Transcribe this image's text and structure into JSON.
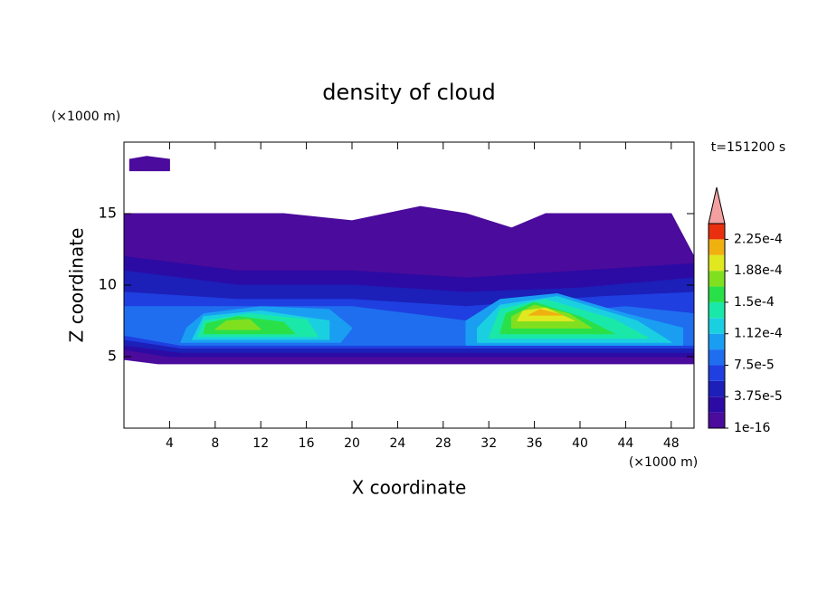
{
  "chart_data": {
    "type": "contour",
    "title": "density of cloud",
    "xlabel": "X coordinate",
    "ylabel": "Z coordinate",
    "xunit": "(×1000 m)",
    "yunit": "(×1000 m)",
    "annotation": "t=151200 s",
    "xlim": [
      0,
      50
    ],
    "ylim": [
      0,
      20
    ],
    "xticks": [
      4,
      8,
      12,
      16,
      20,
      24,
      28,
      32,
      36,
      40,
      44,
      48
    ],
    "yticks": [
      5,
      10,
      15
    ],
    "levels": [
      1e-16,
      1.875e-05,
      3.75e-05,
      5.625e-05,
      7.5e-05,
      9.375e-05,
      0.0001125,
      0.00013125,
      0.00015,
      0.00016875,
      0.0001875,
      0.00020625,
      0.000225,
      0.00024375
    ],
    "colors": [
      "#4b0b9c",
      "#2c0ba4",
      "#1c1fb8",
      "#1f3fe0",
      "#1f6ef0",
      "#1a9ef2",
      "#1ad0e0",
      "#1ae8a8",
      "#2ae048",
      "#80e020",
      "#e0e820",
      "#f0b010",
      "#e83010"
    ],
    "extend_color": "#f4a0a0",
    "colorbar_ticks": [
      {
        "value": 1e-16,
        "label": "1e-16"
      },
      {
        "value": 3.75e-05,
        "label": "3.75e-5"
      },
      {
        "value": 7.5e-05,
        "label": "7.5e-5"
      },
      {
        "value": 0.0001125,
        "label": "1.12e-4"
      },
      {
        "value": 0.00015,
        "label": "1.5e-4"
      },
      {
        "value": 0.0001875,
        "label": "1.88e-4"
      },
      {
        "value": 0.000225,
        "label": "2.25e-4"
      }
    ],
    "regions": [
      {
        "level": 1e-16,
        "points": [
          [
            0,
            4.8
          ],
          [
            3,
            4.5
          ],
          [
            50,
            4.5
          ],
          [
            50,
            12
          ],
          [
            48,
            15
          ],
          [
            37,
            15
          ],
          [
            34,
            14
          ],
          [
            30,
            15
          ],
          [
            26,
            15.5
          ],
          [
            20,
            14.5
          ],
          [
            14,
            15
          ],
          [
            6,
            15
          ],
          [
            0,
            15
          ]
        ]
      },
      {
        "level": 1e-16,
        "points": [
          [
            0.5,
            18
          ],
          [
            4,
            18
          ],
          [
            4,
            18.8
          ],
          [
            2,
            19
          ],
          [
            0.5,
            18.8
          ]
        ]
      },
      {
        "level": 1.875e-05,
        "points": [
          [
            0,
            5.5
          ],
          [
            4,
            5
          ],
          [
            50,
            5
          ],
          [
            50,
            11.5
          ],
          [
            40,
            11
          ],
          [
            30,
            10.5
          ],
          [
            20,
            11
          ],
          [
            10,
            11
          ],
          [
            0,
            12
          ]
        ]
      },
      {
        "level": 3.75e-05,
        "points": [
          [
            0,
            5.8
          ],
          [
            5,
            5.3
          ],
          [
            50,
            5.3
          ],
          [
            50,
            10.5
          ],
          [
            40,
            9.8
          ],
          [
            30,
            9.5
          ],
          [
            20,
            10
          ],
          [
            10,
            10
          ],
          [
            0,
            11
          ]
        ]
      },
      {
        "level": 5.625e-05,
        "points": [
          [
            0,
            6.2
          ],
          [
            5,
            5.6
          ],
          [
            50,
            5.6
          ],
          [
            50,
            9.5
          ],
          [
            42,
            9.2
          ],
          [
            30,
            8.5
          ],
          [
            20,
            9
          ],
          [
            10,
            9
          ],
          [
            0,
            9.5
          ]
        ]
      },
      {
        "level": 7.5e-05,
        "points": [
          [
            0,
            6.5
          ],
          [
            5,
            5.8
          ],
          [
            50,
            5.8
          ],
          [
            50,
            8
          ],
          [
            44,
            8.5
          ],
          [
            30,
            7.5
          ],
          [
            20,
            8.5
          ],
          [
            10,
            8.5
          ],
          [
            0,
            8.5
          ]
        ]
      },
      {
        "level": 9.375e-05,
        "points": [
          [
            5,
            6
          ],
          [
            19,
            6
          ],
          [
            20,
            7
          ],
          [
            18,
            8.3
          ],
          [
            12,
            8.5
          ],
          [
            7,
            8
          ],
          [
            5.5,
            7
          ]
        ]
      },
      {
        "level": 9.375e-05,
        "points": [
          [
            30,
            5.8
          ],
          [
            49,
            5.8
          ],
          [
            49,
            7
          ],
          [
            44,
            8
          ],
          [
            38,
            9.4
          ],
          [
            33,
            9
          ],
          [
            30,
            7.5
          ]
        ]
      },
      {
        "level": 0.0001125,
        "points": [
          [
            6,
            6.2
          ],
          [
            18,
            6.2
          ],
          [
            18,
            7.5
          ],
          [
            12,
            8.2
          ],
          [
            7,
            7.8
          ]
        ]
      },
      {
        "level": 0.0001125,
        "points": [
          [
            31,
            6
          ],
          [
            48,
            6
          ],
          [
            45,
            7.5
          ],
          [
            38,
            9.2
          ],
          [
            33,
            8.6
          ],
          [
            31,
            7
          ]
        ]
      },
      {
        "level": 0.00013125,
        "points": [
          [
            6.5,
            6.4
          ],
          [
            17,
            6.4
          ],
          [
            16,
            7.6
          ],
          [
            11,
            8
          ],
          [
            7,
            7.5
          ]
        ]
      },
      {
        "level": 0.00013125,
        "points": [
          [
            32,
            6.3
          ],
          [
            46,
            6.3
          ],
          [
            43,
            7.6
          ],
          [
            37,
            9
          ],
          [
            33,
            8.3
          ]
        ]
      },
      {
        "level": 0.00015,
        "points": [
          [
            7,
            6.6
          ],
          [
            15,
            6.6
          ],
          [
            14,
            7.4
          ],
          [
            10,
            7.8
          ],
          [
            7.2,
            7.3
          ]
        ]
      },
      {
        "level": 0.00015,
        "points": [
          [
            33,
            6.6
          ],
          [
            43,
            6.6
          ],
          [
            40,
            7.8
          ],
          [
            36,
            8.8
          ],
          [
            33.5,
            8
          ]
        ]
      },
      {
        "level": 0.00016875,
        "points": [
          [
            8,
            6.9
          ],
          [
            12,
            6.9
          ],
          [
            11,
            7.6
          ],
          [
            9,
            7.5
          ]
        ]
      },
      {
        "level": 0.00016875,
        "points": [
          [
            34,
            7
          ],
          [
            41,
            7
          ],
          [
            39,
            8
          ],
          [
            36,
            8.6
          ],
          [
            34,
            7.8
          ]
        ]
      },
      {
        "level": 0.0001875,
        "points": [
          [
            34.5,
            7.5
          ],
          [
            39.5,
            7.5
          ],
          [
            37,
            8.4
          ],
          [
            35,
            8.2
          ]
        ]
      },
      {
        "level": 0.00020625,
        "points": [
          [
            35.5,
            7.9
          ],
          [
            38.5,
            7.9
          ],
          [
            36.5,
            8.3
          ]
        ]
      }
    ]
  }
}
